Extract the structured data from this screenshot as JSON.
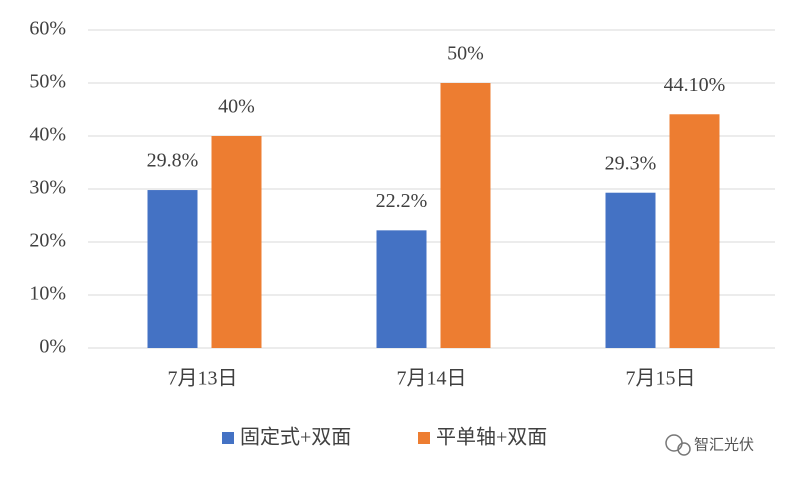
{
  "chart_data": {
    "type": "bar",
    "categories": [
      "7月13日",
      "7月14日",
      "7月15日"
    ],
    "series": [
      {
        "name": "固定式+双面",
        "color": "#4472c4",
        "values": [
          29.8,
          22.2,
          29.3
        ],
        "value_labels": [
          "29.8%",
          "22.2%",
          "29.3%"
        ]
      },
      {
        "name": "平单轴+双面",
        "color": "#ed7d31",
        "values": [
          40,
          50,
          44.1
        ],
        "value_labels": [
          "40%",
          "50%",
          "44.10%"
        ]
      }
    ],
    "ylim": [
      0,
      60
    ],
    "yticks": [
      {
        "value": 0,
        "label": "0%"
      },
      {
        "value": 10,
        "label": "10%"
      },
      {
        "value": 20,
        "label": "20%"
      },
      {
        "value": 30,
        "label": "30%"
      },
      {
        "value": 40,
        "label": "40%"
      },
      {
        "value": 50,
        "label": "50%"
      },
      {
        "value": 60,
        "label": "60%"
      }
    ],
    "grid": true,
    "legend": "bottom",
    "watermark": "智汇光伏"
  }
}
